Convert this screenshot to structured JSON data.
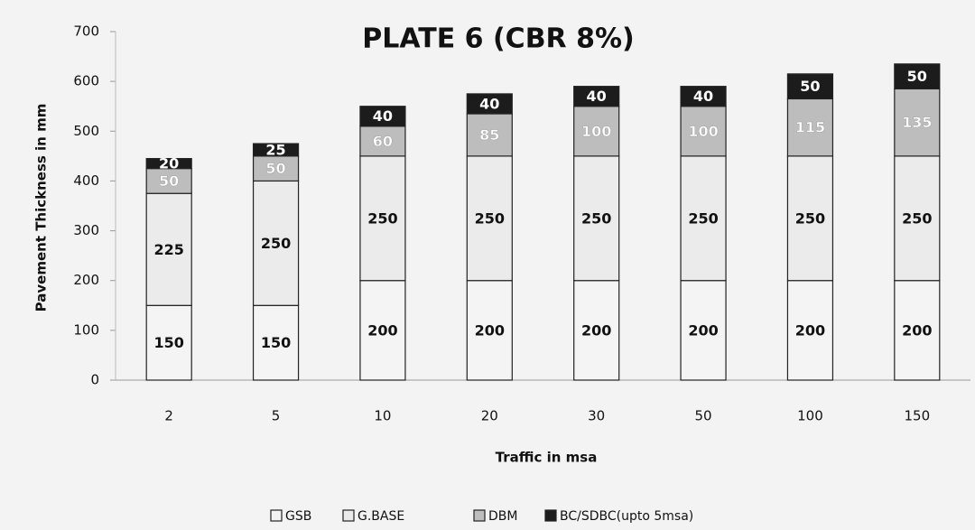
{
  "chart_data": {
    "type": "stacked_bar",
    "title": "PLATE 6 (CBR 8%)",
    "x_label": "Traffic in msa",
    "y_label": "Pavement Thickness in mm",
    "categories": [
      "2",
      "5",
      "10",
      "20",
      "30",
      "50",
      "100",
      "150"
    ],
    "series": [
      {
        "name": "GSB",
        "color": "#f4f4f4",
        "values": [
          150,
          150,
          200,
          200,
          200,
          200,
          200,
          200
        ]
      },
      {
        "name": "G.BASE",
        "color": "#ebebeb",
        "values": [
          225,
          250,
          250,
          250,
          250,
          250,
          250,
          250
        ]
      },
      {
        "name": "DBM",
        "color": "#bdbdbd",
        "values": [
          50,
          50,
          60,
          85,
          100,
          100,
          115,
          135
        ]
      },
      {
        "name": "BC/SDBC(upto 5msa)",
        "color": "#1c1c1c",
        "values": [
          20,
          25,
          40,
          40,
          40,
          40,
          50,
          50
        ]
      }
    ],
    "ylim": [
      0,
      700
    ],
    "yticks": [
      0,
      100,
      200,
      300,
      400,
      500,
      600,
      700
    ],
    "legend": "bottom"
  }
}
